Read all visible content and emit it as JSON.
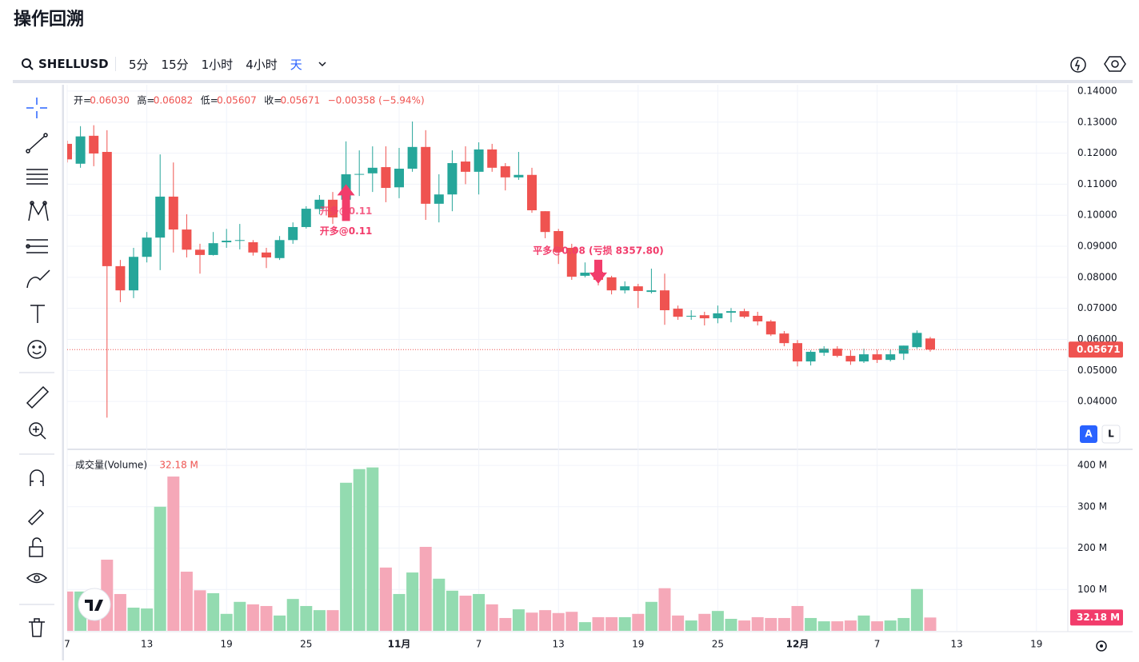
{
  "header": {
    "title": "操作回溯"
  },
  "toolbar": {
    "symbol": "SHELLUSD",
    "intervals": [
      "5分",
      "15分",
      "1小时",
      "4小时",
      "天"
    ],
    "active": 4
  },
  "chart_data": {
    "type": "candlestick",
    "legend": [
      {
        "name": "开=",
        "value": "0.06030"
      },
      {
        "name": "高=",
        "value": "0.06082"
      },
      {
        "name": "低=",
        "value": "0.05607"
      },
      {
        "name": "收=",
        "value": "0.05671"
      }
    ],
    "change": "−0.00358 (−5.94%)",
    "categories": [
      "7",
      null,
      null,
      null,
      null,
      null,
      "13",
      null,
      null,
      null,
      null,
      null,
      "19",
      null,
      null,
      null,
      null,
      null,
      "25",
      null,
      null,
      null,
      null,
      null,
      null,
      "11月",
      null,
      null,
      null,
      null,
      null,
      "7",
      null,
      null,
      null,
      null,
      null,
      "13",
      null,
      null,
      null,
      null,
      null,
      "19",
      null,
      null,
      null,
      null,
      null,
      "25",
      null,
      null,
      null,
      null,
      null,
      "12月",
      null,
      null,
      null,
      null,
      null,
      "7",
      null,
      null,
      null,
      null
    ],
    "extra_categories": [
      null,
      "13",
      null,
      null,
      null,
      null,
      null,
      "19"
    ],
    "open": [
      0.123,
      0.1166,
      0.1256,
      0.1204,
      0.0836,
      0.0758,
      0.0866,
      0.0928,
      0.106,
      0.0954,
      0.0889,
      0.0872,
      0.0913,
      0.0918,
      0.0913,
      0.088,
      0.0862,
      0.092,
      0.0962,
      0.102,
      0.105,
      0.105,
      0.1132,
      0.1135,
      0.1155,
      0.109,
      0.115,
      0.122,
      0.1037,
      0.1067,
      0.1173,
      0.114,
      0.1212,
      0.1158,
      0.1122,
      0.113,
      0.1013,
      0.0949,
      0.0895,
      0.0805,
      0.0818,
      0.08,
      0.0758,
      0.0771,
      0.0753,
      0.0758,
      0.0699,
      0.0675,
      0.0678,
      0.0668,
      0.0686,
      0.0691,
      0.0676,
      0.0658,
      0.0619,
      0.0588,
      0.0529,
      0.0557,
      0.057,
      0.0547,
      0.0529,
      0.0552,
      0.0534,
      0.0554,
      0.0575,
      0.0603
    ],
    "high": [
      0.124,
      0.1287,
      0.129,
      0.1274,
      0.0856,
      0.0895,
      0.0946,
      0.1196,
      0.117,
      0.1003,
      0.0908,
      0.0946,
      0.0956,
      0.0972,
      0.092,
      0.0895,
      0.0933,
      0.0977,
      0.1029,
      0.1065,
      0.1075,
      0.1238,
      0.1209,
      0.1222,
      0.1222,
      0.1217,
      0.1302,
      0.1274,
      0.1132,
      0.1209,
      0.1222,
      0.1235,
      0.123,
      0.1168,
      0.1204,
      0.1153,
      0.1013,
      0.0956,
      0.0908,
      0.0848,
      0.083,
      0.0805,
      0.0787,
      0.0779,
      0.0828,
      0.0812,
      0.0709,
      0.0694,
      0.0689,
      0.0709,
      0.0701,
      0.0699,
      0.0689,
      0.0663,
      0.0627,
      0.0598,
      0.0565,
      0.0578,
      0.0578,
      0.0565,
      0.057,
      0.0567,
      0.0567,
      0.058,
      0.0629,
      0.06082
    ],
    "low": [
      0.117,
      0.1153,
      0.1158,
      0.0348,
      0.072,
      0.0733,
      0.0848,
      0.0823,
      0.088,
      0.0864,
      0.0812,
      0.087,
      0.0895,
      0.089,
      0.087,
      0.083,
      0.0856,
      0.0908,
      0.0957,
      0.1003,
      0.0972,
      0.1044,
      0.1062,
      0.1075,
      0.1042,
      0.1055,
      0.114,
      0.0985,
      0.0977,
      0.1013,
      0.11,
      0.1067,
      0.114,
      0.108,
      0.1114,
      0.1008,
      0.0926,
      0.0843,
      0.0792,
      0.08,
      0.0774,
      0.0745,
      0.0748,
      0.0701,
      0.0748,
      0.0647,
      0.0663,
      0.0663,
      0.0645,
      0.0652,
      0.0655,
      0.0668,
      0.0645,
      0.0611,
      0.0578,
      0.0513,
      0.0516,
      0.0547,
      0.0542,
      0.0518,
      0.0524,
      0.0524,
      0.0529,
      0.0534,
      0.057,
      0.05607
    ],
    "close": [
      0.118,
      0.1254,
      0.1199,
      0.0836,
      0.0758,
      0.0866,
      0.0928,
      0.106,
      0.0954,
      0.0889,
      0.0872,
      0.091,
      0.0918,
      0.092,
      0.088,
      0.0864,
      0.092,
      0.0962,
      0.1021,
      0.105,
      0.0993,
      0.1132,
      0.1133,
      0.1153,
      0.1088,
      0.115,
      0.122,
      0.1037,
      0.1067,
      0.1168,
      0.114,
      0.1212,
      0.1153,
      0.1122,
      0.113,
      0.1016,
      0.0946,
      0.0882,
      0.0802,
      0.0815,
      0.0792,
      0.0758,
      0.0771,
      0.0756,
      0.0758,
      0.0694,
      0.0673,
      0.0676,
      0.0668,
      0.0684,
      0.0691,
      0.0673,
      0.0658,
      0.0616,
      0.0588,
      0.0529,
      0.056,
      0.057,
      0.0547,
      0.0529,
      0.0552,
      0.0534,
      0.0552,
      0.058,
      0.0621,
      0.05671
    ],
    "up_color": "#26a69a",
    "down_color": "#ef5350",
    "ylim": [
      0.0251,
      0.1423
    ],
    "yticks": [
      {
        "value": 0.04,
        "label": "0.04000"
      },
      {
        "value": 0.05,
        "label": "0.05000"
      },
      {
        "value": 0.06,
        "label": "0.06000"
      },
      {
        "value": 0.07,
        "label": "0.07000"
      },
      {
        "value": 0.08,
        "label": "0.08000"
      },
      {
        "value": 0.09,
        "label": "0.09000"
      },
      {
        "value": 0.1,
        "label": "0.10000"
      },
      {
        "value": 0.11,
        "label": "0.11000"
      },
      {
        "value": 0.12,
        "label": "0.12000"
      },
      {
        "value": 0.13,
        "label": "0.13000"
      },
      {
        "value": 0.14,
        "label": "0.14000"
      }
    ],
    "last_price": 0.05671,
    "annotations": [
      {
        "text": "开多@0.11",
        "index": 21,
        "price": 0.11,
        "side": "up"
      },
      {
        "text": "平多@0.08 (亏损 8357.80)",
        "index": 40,
        "price": 0.08,
        "side": "down"
      }
    ],
    "volume": {
      "name": "成交量(Volume)",
      "last": {
        "value": 32.18,
        "label": "32.18 M"
      },
      "values": [
        95,
        95,
        95,
        172,
        89,
        56,
        54,
        300,
        373,
        143,
        98,
        91,
        41,
        70,
        64,
        60,
        37,
        77,
        60,
        50,
        50,
        358,
        391,
        395,
        153,
        89,
        141,
        203,
        126,
        97,
        85,
        89,
        64,
        31,
        52,
        44,
        50,
        43,
        46,
        21,
        33,
        33,
        33,
        41,
        70,
        103,
        37,
        25,
        41,
        48,
        29,
        25,
        33,
        31,
        31,
        60,
        31,
        23,
        23,
        25,
        37,
        23,
        25,
        31,
        101,
        32.18
      ],
      "up_color": "#93dbb0",
      "down_color": "#f5a8b8",
      "ylim": [
        0,
        433
      ],
      "yticks": [
        {
          "value": 100,
          "label": "100 M"
        },
        {
          "value": 200,
          "label": "200 M"
        },
        {
          "value": 300,
          "label": "300 M"
        },
        {
          "value": 400,
          "label": "400 M"
        }
      ]
    },
    "scale_buttons": [
      "A",
      "L"
    ]
  }
}
